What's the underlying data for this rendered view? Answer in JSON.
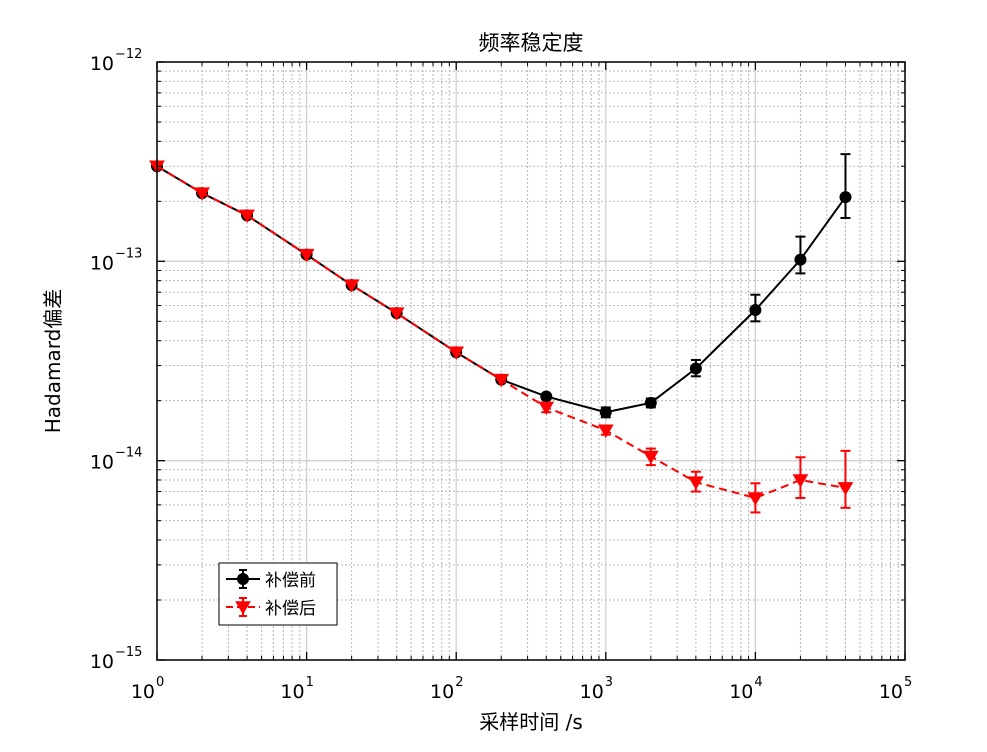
{
  "chart_data": {
    "type": "line",
    "title": "频率稳定度",
    "xlabel": "采样时间  /s",
    "ylabel": "Hadamard偏差",
    "xscale": "log",
    "yscale": "log",
    "xlim": [
      1,
      100000
    ],
    "ylim": [
      1e-15,
      1e-12
    ],
    "grid": true,
    "minor_grid": true,
    "legend_position": "bottom-left",
    "x_ticks": [
      {
        "base": "10",
        "exp": "0",
        "value": 1
      },
      {
        "base": "10",
        "exp": "1",
        "value": 10
      },
      {
        "base": "10",
        "exp": "2",
        "value": 100
      },
      {
        "base": "10",
        "exp": "3",
        "value": 1000
      },
      {
        "base": "10",
        "exp": "4",
        "value": 10000
      },
      {
        "base": "10",
        "exp": "5",
        "value": 100000
      }
    ],
    "y_ticks": [
      {
        "base": "10",
        "exp": "−15",
        "value": 1e-15
      },
      {
        "base": "10",
        "exp": "−14",
        "value": 1e-14
      },
      {
        "base": "10",
        "exp": "−13",
        "value": 1e-13
      },
      {
        "base": "10",
        "exp": "−12",
        "value": 1e-12
      }
    ],
    "x": [
      1,
      2,
      4,
      10,
      20,
      40,
      100,
      200,
      400,
      1000,
      2000,
      4000,
      10000,
      20000,
      40000
    ],
    "series": [
      {
        "name": "补偿前",
        "color": "#000000",
        "line_style": "solid",
        "marker": "circle",
        "values": [
          3e-13,
          2.2e-13,
          1.7e-13,
          1.08e-13,
          7.6e-14,
          5.5e-14,
          3.5e-14,
          2.55e-14,
          2.1e-14,
          1.75e-14,
          1.95e-14,
          2.9e-14,
          5.7e-14,
          1.02e-13,
          2.1e-13
        ],
        "err_low": [
          null,
          null,
          null,
          null,
          null,
          null,
          null,
          null,
          null,
          1.65e-14,
          1.85e-14,
          2.65e-14,
          5e-14,
          8.7e-14,
          1.65e-13
        ],
        "err_high": [
          null,
          null,
          null,
          null,
          null,
          null,
          null,
          null,
          null,
          1.85e-14,
          2.05e-14,
          3.2e-14,
          6.8e-14,
          1.33e-13,
          3.45e-13
        ]
      },
      {
        "name": "补偿后",
        "color": "#ff0000",
        "line_style": "dashed",
        "marker": "triangle-down",
        "values": [
          3e-13,
          2.2e-13,
          1.7e-13,
          1.08e-13,
          7.6e-14,
          5.5e-14,
          3.5e-14,
          2.55e-14,
          1.85e-14,
          1.42e-14,
          1.05e-14,
          7.8e-15,
          6.5e-15,
          8e-15,
          7.3e-15
        ],
        "err_low": [
          null,
          null,
          null,
          null,
          null,
          null,
          null,
          null,
          1.75e-14,
          1.35e-14,
          9.5e-15,
          7e-15,
          5.5e-15,
          6.5e-15,
          5.8e-15
        ],
        "err_high": [
          null,
          null,
          null,
          null,
          null,
          null,
          null,
          null,
          1.95e-14,
          1.5e-14,
          1.15e-14,
          8.8e-15,
          7.7e-15,
          1.04e-14,
          1.12e-14
        ]
      }
    ]
  }
}
